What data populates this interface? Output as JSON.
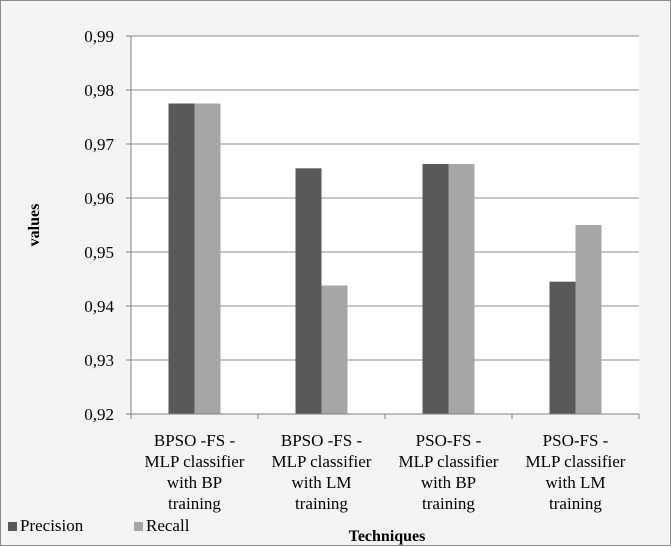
{
  "chart_data": {
    "type": "bar",
    "xlabel": "Techniques",
    "ylabel": "values",
    "ylim": [
      0.92,
      0.99
    ],
    "yticks": [
      "0,92",
      "0,93",
      "0,94",
      "0,95",
      "0,96",
      "0,97",
      "0,98",
      "0,99"
    ],
    "grid": true,
    "legend_position": "bottom-left",
    "categories": [
      [
        "BPSO -FS -",
        "MLP classifier",
        "with BP",
        "training"
      ],
      [
        "BPSO -FS -",
        "MLP classifier",
        "with LM",
        "training"
      ],
      [
        "PSO-FS -",
        "MLP classifier",
        "with BP",
        "training"
      ],
      [
        "PSO-FS -",
        "MLP classifier",
        "with LM",
        "training"
      ]
    ],
    "series": [
      {
        "name": "Precision",
        "color": "#595959",
        "values": [
          0.9775,
          0.9655,
          0.9663,
          0.9445
        ]
      },
      {
        "name": "Recall",
        "color": "#a6a6a6",
        "values": [
          0.9775,
          0.9438,
          0.9663,
          0.955
        ]
      }
    ]
  }
}
